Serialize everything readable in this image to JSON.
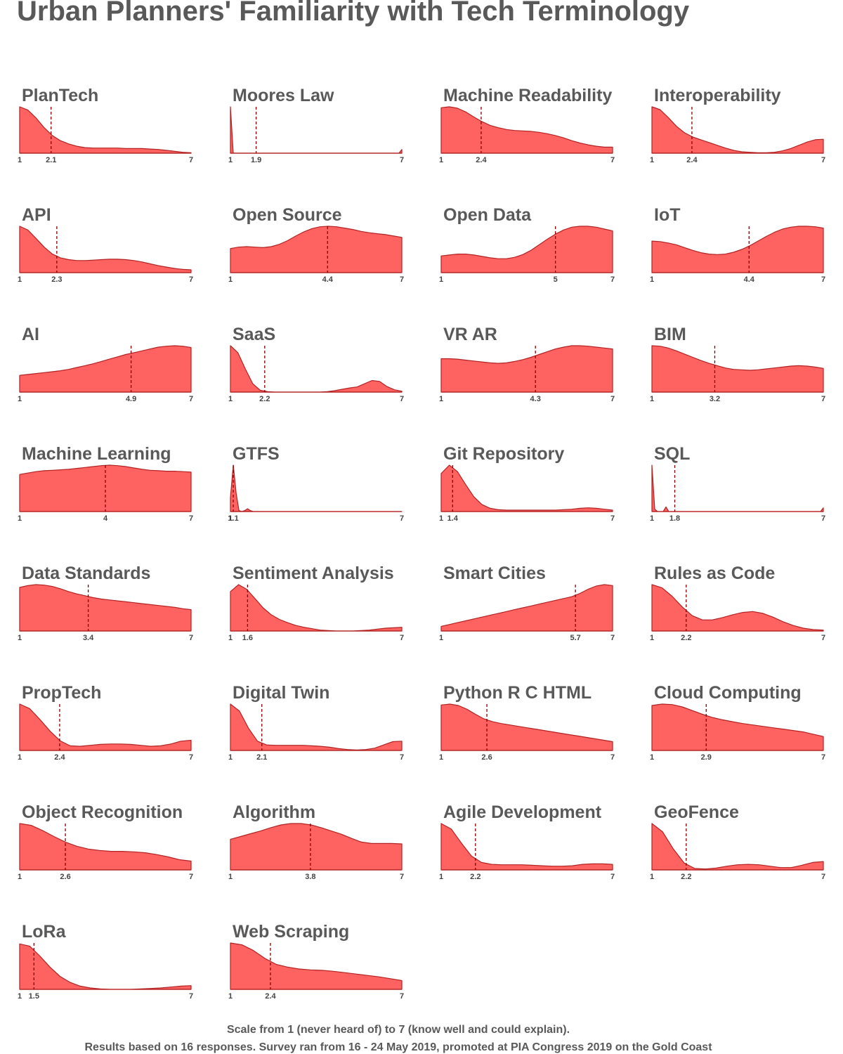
{
  "title": "Urban Planners' Familiarity with Tech Terminology",
  "caption_line1": "Scale from 1 (never heard of) to 7 (know well and could explain).",
  "caption_line2": "Results based on 16 responses. Survey ran from 16 - 24 May 2019, promoted at PIA Congress 2019 on the Gold Coast",
  "colors": {
    "fill": "#ff6361",
    "stroke": "#b22222",
    "mean_line": "#8b0000",
    "text": "#595959"
  },
  "chart_data": {
    "type": "area",
    "scale": [
      1,
      7
    ],
    "xlim": [
      1,
      7
    ],
    "grid": false,
    "legend": "none",
    "panels": [
      {
        "name": "PlanTech",
        "mean": 2.1,
        "density": [
          1.0,
          0.93,
          0.76,
          0.55,
          0.38,
          0.27,
          0.2,
          0.15,
          0.12,
          0.11,
          0.11,
          0.11,
          0.11,
          0.1,
          0.1,
          0.1,
          0.09,
          0.08,
          0.06,
          0.04,
          0.02,
          0.01
        ]
      },
      {
        "name": "Moores Law",
        "mean": 1.9,
        "density": [
          1.0,
          0.0,
          0.0,
          0.0,
          0.0,
          0.0,
          0.0,
          0.0,
          0.0,
          0.0,
          0.0,
          0.0,
          0.0,
          0.0,
          0.0,
          0.0,
          0.0,
          0.0,
          0.0,
          0.0,
          0.0,
          0.0,
          0.0,
          0.0,
          0.0,
          0.0,
          0.0,
          0.0,
          0.0,
          0.0,
          0.0,
          0.0,
          0.0,
          0.0,
          0.0,
          0.0,
          0.0,
          0.0,
          0.0,
          0.0,
          0.0,
          0.0,
          0.0,
          0.0,
          0.0,
          0.0,
          0.0,
          0.0,
          0.0,
          0.0,
          0.0,
          0.0,
          0.0,
          0.0,
          0.0,
          0.0,
          0.0,
          0.0,
          0.0,
          0.0,
          0.0,
          0.08
        ]
      },
      {
        "name": "Machine Readability",
        "mean": 2.4,
        "density": [
          0.98,
          1.0,
          0.97,
          0.89,
          0.78,
          0.68,
          0.6,
          0.55,
          0.51,
          0.49,
          0.48,
          0.47,
          0.45,
          0.42,
          0.38,
          0.33,
          0.27,
          0.22,
          0.18,
          0.15,
          0.13,
          0.13
        ]
      },
      {
        "name": "Interoperability",
        "mean": 2.4,
        "density": [
          1.0,
          0.94,
          0.77,
          0.58,
          0.44,
          0.35,
          0.29,
          0.23,
          0.17,
          0.11,
          0.06,
          0.03,
          0.02,
          0.01,
          0.01,
          0.02,
          0.05,
          0.1,
          0.17,
          0.24,
          0.29,
          0.3
        ]
      },
      {
        "name": "API",
        "mean": 2.3,
        "density": [
          1.0,
          0.92,
          0.74,
          0.55,
          0.4,
          0.32,
          0.28,
          0.26,
          0.26,
          0.27,
          0.28,
          0.29,
          0.29,
          0.28,
          0.26,
          0.23,
          0.19,
          0.15,
          0.12,
          0.09,
          0.07,
          0.06
        ]
      },
      {
        "name": "Open Source",
        "mean": 4.4,
        "density": [
          0.52,
          0.55,
          0.56,
          0.55,
          0.54,
          0.56,
          0.61,
          0.69,
          0.79,
          0.88,
          0.95,
          0.99,
          1.0,
          0.99,
          0.96,
          0.93,
          0.89,
          0.86,
          0.84,
          0.82,
          0.79,
          0.76
        ]
      },
      {
        "name": "Open Data",
        "mean": 5.0,
        "density": [
          0.36,
          0.38,
          0.4,
          0.4,
          0.38,
          0.35,
          0.32,
          0.3,
          0.3,
          0.33,
          0.39,
          0.48,
          0.6,
          0.72,
          0.83,
          0.92,
          0.98,
          1.0,
          1.0,
          0.98,
          0.94,
          0.9
        ]
      },
      {
        "name": "IoT",
        "mean": 4.4,
        "density": [
          0.68,
          0.67,
          0.64,
          0.6,
          0.54,
          0.48,
          0.43,
          0.4,
          0.39,
          0.4,
          0.44,
          0.5,
          0.58,
          0.68,
          0.78,
          0.87,
          0.94,
          0.98,
          1.0,
          1.0,
          0.99,
          0.96
        ]
      },
      {
        "name": "AI",
        "mean": 4.9,
        "density": [
          0.36,
          0.38,
          0.4,
          0.42,
          0.44,
          0.46,
          0.49,
          0.53,
          0.57,
          0.61,
          0.66,
          0.71,
          0.76,
          0.81,
          0.85,
          0.89,
          0.93,
          0.97,
          0.99,
          1.0,
          0.99,
          0.96
        ]
      },
      {
        "name": "SaaS",
        "mean": 2.2,
        "density": [
          1.0,
          0.85,
          0.5,
          0.18,
          0.04,
          0.01,
          0.0,
          0.0,
          0.0,
          0.0,
          0.0,
          0.0,
          0.0,
          0.01,
          0.03,
          0.06,
          0.09,
          0.11,
          0.18,
          0.25,
          0.23,
          0.12,
          0.05,
          0.02
        ]
      },
      {
        "name": "VR AR",
        "mean": 4.3,
        "density": [
          0.72,
          0.72,
          0.71,
          0.69,
          0.67,
          0.65,
          0.63,
          0.62,
          0.63,
          0.66,
          0.7,
          0.75,
          0.81,
          0.87,
          0.93,
          0.97,
          1.0,
          1.0,
          0.99,
          0.97,
          0.95,
          0.93
        ]
      },
      {
        "name": "BIM",
        "mean": 3.2,
        "density": [
          1.0,
          0.99,
          0.95,
          0.89,
          0.82,
          0.75,
          0.68,
          0.62,
          0.57,
          0.52,
          0.49,
          0.48,
          0.47,
          0.48,
          0.5,
          0.52,
          0.54,
          0.56,
          0.57,
          0.56,
          0.54,
          0.51
        ]
      },
      {
        "name": "Machine Learning",
        "mean": 4.0,
        "density": [
          0.8,
          0.83,
          0.86,
          0.88,
          0.89,
          0.9,
          0.91,
          0.93,
          0.95,
          0.97,
          0.99,
          1.0,
          0.99,
          0.97,
          0.94,
          0.91,
          0.89,
          0.88,
          0.87,
          0.87,
          0.86,
          0.85
        ]
      },
      {
        "name": "GTFS",
        "mean": 1.1,
        "density": [
          0.3,
          1.0,
          0.4,
          0.02,
          0.0,
          0.02,
          0.06,
          0.02,
          0.0,
          0.0,
          0.0,
          0.0,
          0.0,
          0.0,
          0.0,
          0.0,
          0.0,
          0.0,
          0.0,
          0.0,
          0.0,
          0.0,
          0.0,
          0.0,
          0.0,
          0.0,
          0.0,
          0.0,
          0.0,
          0.0,
          0.0,
          0.0,
          0.0,
          0.0,
          0.0,
          0.0,
          0.0,
          0.0,
          0.0,
          0.0,
          0.0,
          0.0,
          0.0,
          0.0,
          0.0,
          0.0,
          0.0,
          0.0,
          0.0,
          0.0,
          0.0,
          0.0,
          0.0,
          0.0,
          0.0,
          0.0,
          0.0,
          0.0,
          0.0,
          0.0,
          0.0
        ]
      },
      {
        "name": "Git Repository",
        "mean": 1.4,
        "density": [
          0.82,
          1.0,
          0.86,
          0.58,
          0.32,
          0.15,
          0.07,
          0.04,
          0.03,
          0.03,
          0.03,
          0.03,
          0.03,
          0.03,
          0.03,
          0.04,
          0.05,
          0.07,
          0.08,
          0.07,
          0.05,
          0.03
        ]
      },
      {
        "name": "SQL",
        "mean": 1.8,
        "density": [
          1.0,
          0.05,
          0.0,
          0.0,
          0.0,
          0.1,
          0.0,
          0.0,
          0.0,
          0.0,
          0.0,
          0.0,
          0.0,
          0.0,
          0.0,
          0.0,
          0.0,
          0.0,
          0.0,
          0.0,
          0.0,
          0.0,
          0.0,
          0.0,
          0.0,
          0.0,
          0.0,
          0.0,
          0.0,
          0.0,
          0.0,
          0.0,
          0.0,
          0.0,
          0.0,
          0.0,
          0.0,
          0.0,
          0.0,
          0.0,
          0.0,
          0.0,
          0.0,
          0.0,
          0.0,
          0.0,
          0.0,
          0.0,
          0.0,
          0.0,
          0.0,
          0.0,
          0.0,
          0.0,
          0.0,
          0.0,
          0.0,
          0.0,
          0.0,
          0.0,
          0.0,
          0.08
        ]
      },
      {
        "name": "Data Standards",
        "mean": 3.4,
        "density": [
          0.94,
          0.98,
          1.0,
          0.99,
          0.96,
          0.91,
          0.85,
          0.8,
          0.76,
          0.72,
          0.69,
          0.67,
          0.65,
          0.63,
          0.61,
          0.59,
          0.57,
          0.55,
          0.53,
          0.51,
          0.48,
          0.46
        ]
      },
      {
        "name": "Sentiment Analysis",
        "mean": 1.6,
        "density": [
          0.85,
          1.0,
          0.9,
          0.7,
          0.5,
          0.35,
          0.25,
          0.18,
          0.12,
          0.08,
          0.05,
          0.02,
          0.01,
          0.0,
          0.0,
          0.0,
          0.01,
          0.02,
          0.04,
          0.06,
          0.07,
          0.08
        ]
      },
      {
        "name": "Smart Cities",
        "mean": 5.7,
        "density": [
          0.1,
          0.14,
          0.18,
          0.22,
          0.26,
          0.3,
          0.34,
          0.38,
          0.42,
          0.46,
          0.5,
          0.54,
          0.58,
          0.62,
          0.66,
          0.7,
          0.74,
          0.81,
          0.9,
          0.97,
          1.0,
          0.98
        ]
      },
      {
        "name": "Rules as Code",
        "mean": 2.2,
        "density": [
          1.0,
          0.93,
          0.75,
          0.52,
          0.33,
          0.24,
          0.24,
          0.29,
          0.35,
          0.4,
          0.42,
          0.38,
          0.3,
          0.2,
          0.12,
          0.06,
          0.03,
          0.02
        ]
      },
      {
        "name": "PropTech",
        "mean": 2.4,
        "density": [
          1.0,
          0.9,
          0.67,
          0.42,
          0.21,
          0.1,
          0.09,
          0.11,
          0.13,
          0.14,
          0.14,
          0.13,
          0.11,
          0.09,
          0.1,
          0.14,
          0.2,
          0.22
        ]
      },
      {
        "name": "Digital Twin",
        "mean": 2.1,
        "density": [
          1.0,
          0.85,
          0.48,
          0.2,
          0.12,
          0.11,
          0.11,
          0.11,
          0.11,
          0.1,
          0.09,
          0.07,
          0.04,
          0.02,
          0.01,
          0.02,
          0.05,
          0.12,
          0.19,
          0.2
        ]
      },
      {
        "name": "Python R C   HTML",
        "mean": 2.6,
        "density": [
          0.98,
          1.0,
          0.97,
          0.89,
          0.78,
          0.68,
          0.62,
          0.58,
          0.55,
          0.52,
          0.49,
          0.46,
          0.43,
          0.4,
          0.37,
          0.34,
          0.31,
          0.28,
          0.25,
          0.22,
          0.19
        ]
      },
      {
        "name": "Cloud Computing",
        "mean": 2.9,
        "density": [
          0.97,
          1.0,
          0.99,
          0.94,
          0.86,
          0.78,
          0.71,
          0.66,
          0.62,
          0.58,
          0.55,
          0.52,
          0.49,
          0.46,
          0.43,
          0.4,
          0.35,
          0.3
        ]
      },
      {
        "name": "Object Recognition",
        "mean": 2.6,
        "density": [
          1.0,
          0.96,
          0.85,
          0.72,
          0.6,
          0.51,
          0.45,
          0.42,
          0.4,
          0.4,
          0.39,
          0.37,
          0.33,
          0.28,
          0.22,
          0.19
        ]
      },
      {
        "name": "Algorithm",
        "mean": 3.8,
        "density": [
          0.66,
          0.72,
          0.78,
          0.84,
          0.91,
          0.97,
          1.0,
          1.0,
          0.97,
          0.91,
          0.84,
          0.77,
          0.68,
          0.6,
          0.57,
          0.57,
          0.57,
          0.56
        ]
      },
      {
        "name": "Agile Development",
        "mean": 2.2,
        "density": [
          1.0,
          0.88,
          0.58,
          0.3,
          0.16,
          0.12,
          0.11,
          0.11,
          0.11,
          0.1,
          0.09,
          0.08,
          0.08,
          0.09,
          0.12,
          0.13,
          0.13,
          0.12
        ]
      },
      {
        "name": "GeoFence",
        "mean": 2.2,
        "density": [
          1.0,
          0.82,
          0.45,
          0.15,
          0.03,
          0.02,
          0.04,
          0.08,
          0.11,
          0.12,
          0.11,
          0.08,
          0.05,
          0.05,
          0.1,
          0.16,
          0.18
        ]
      },
      {
        "name": "LoRa",
        "mean": 1.5,
        "density": [
          0.98,
          0.93,
          0.72,
          0.48,
          0.28,
          0.15,
          0.07,
          0.03,
          0.01,
          0.0,
          0.0,
          0.0,
          0.01,
          0.02,
          0.03,
          0.05,
          0.07,
          0.08
        ]
      },
      {
        "name": "Web Scraping",
        "mean": 2.4,
        "density": [
          1.0,
          0.96,
          0.84,
          0.67,
          0.54,
          0.48,
          0.44,
          0.42,
          0.41,
          0.39,
          0.36,
          0.33,
          0.3,
          0.27,
          0.23,
          0.19
        ]
      }
    ]
  }
}
